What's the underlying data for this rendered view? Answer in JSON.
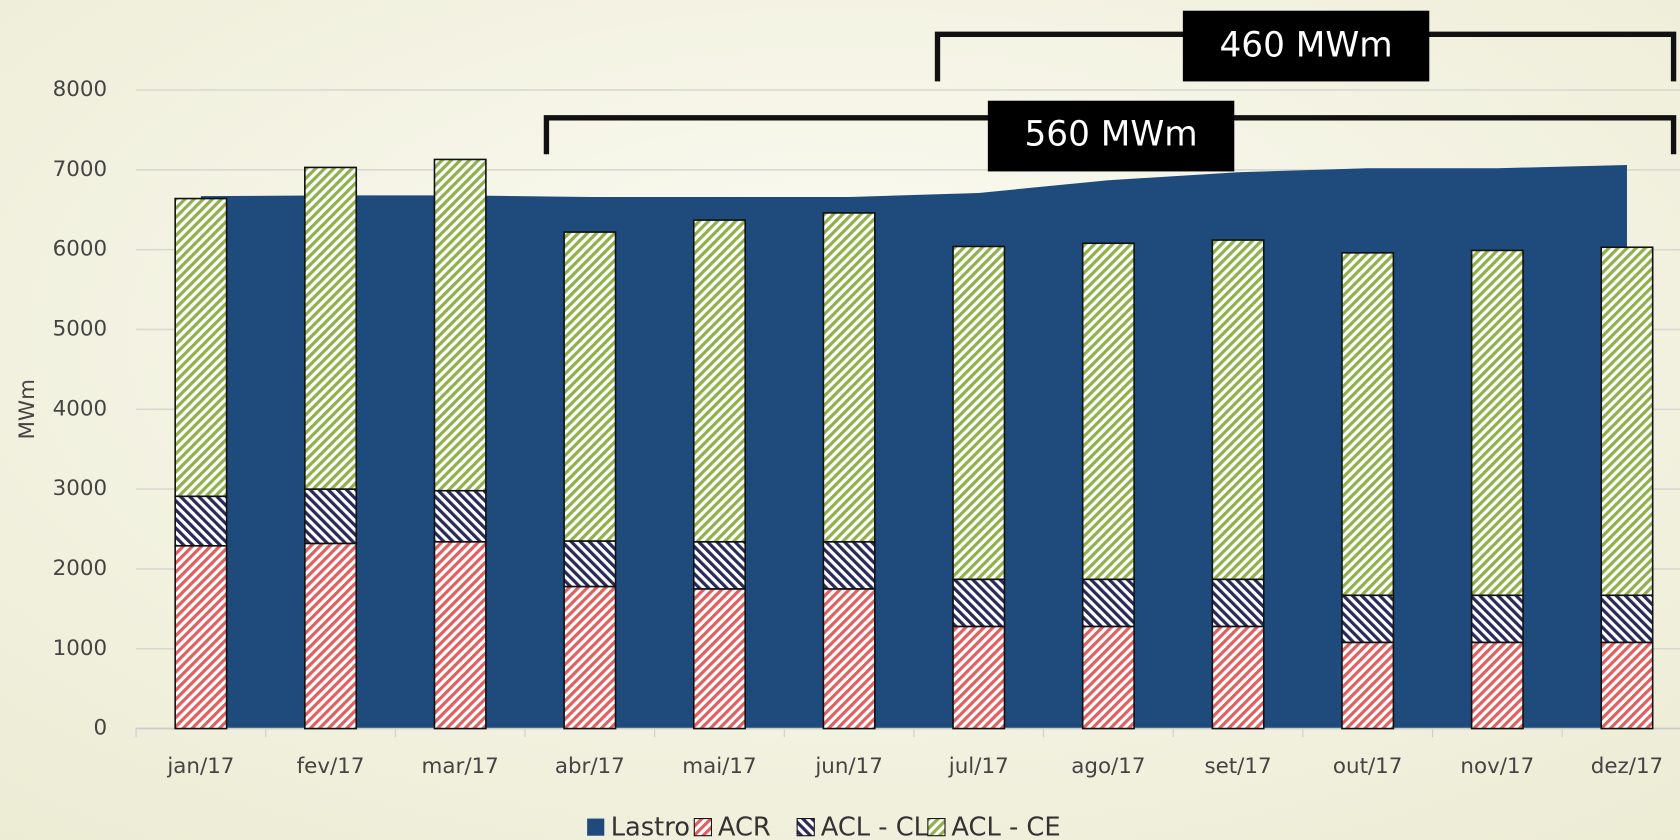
{
  "chart_data": {
    "type": "bar",
    "categories": [
      "jan/17",
      "fev/17",
      "mar/17",
      "abr/17",
      "mai/17",
      "jun/17",
      "jul/17",
      "ago/17",
      "set/17",
      "out/17",
      "nov/17",
      "dez/17"
    ],
    "ylabel": "MWm",
    "ylim": [
      0,
      8000
    ],
    "yticks": [
      0,
      1000,
      2000,
      3000,
      4000,
      5000,
      6000,
      7000,
      8000
    ],
    "grid": true,
    "area": {
      "name": "Lastro",
      "color": "#1f4a7c",
      "values": [
        6670,
        6680,
        6680,
        6660,
        6660,
        6660,
        6710,
        6870,
        6970,
        7020,
        7020,
        7060
      ]
    },
    "series": [
      {
        "name": "ACR",
        "color": "#e06060",
        "values": [
          2290,
          2320,
          2340,
          1780,
          1750,
          1750,
          1280,
          1280,
          1280,
          1080,
          1080,
          1080
        ]
      },
      {
        "name": "ACL - CL",
        "color": "#2a2a5a",
        "values": [
          620,
          680,
          640,
          570,
          590,
          590,
          590,
          590,
          590,
          590,
          590,
          590
        ]
      },
      {
        "name": "ACL - CE",
        "color": "#8fb04a",
        "values": [
          3730,
          4030,
          4150,
          3870,
          4030,
          4120,
          4170,
          4210,
          4250,
          4290,
          4320,
          4360
        ]
      }
    ],
    "annotations": [
      "460 MWm",
      "560 MWm"
    ],
    "legend": "bottom"
  }
}
